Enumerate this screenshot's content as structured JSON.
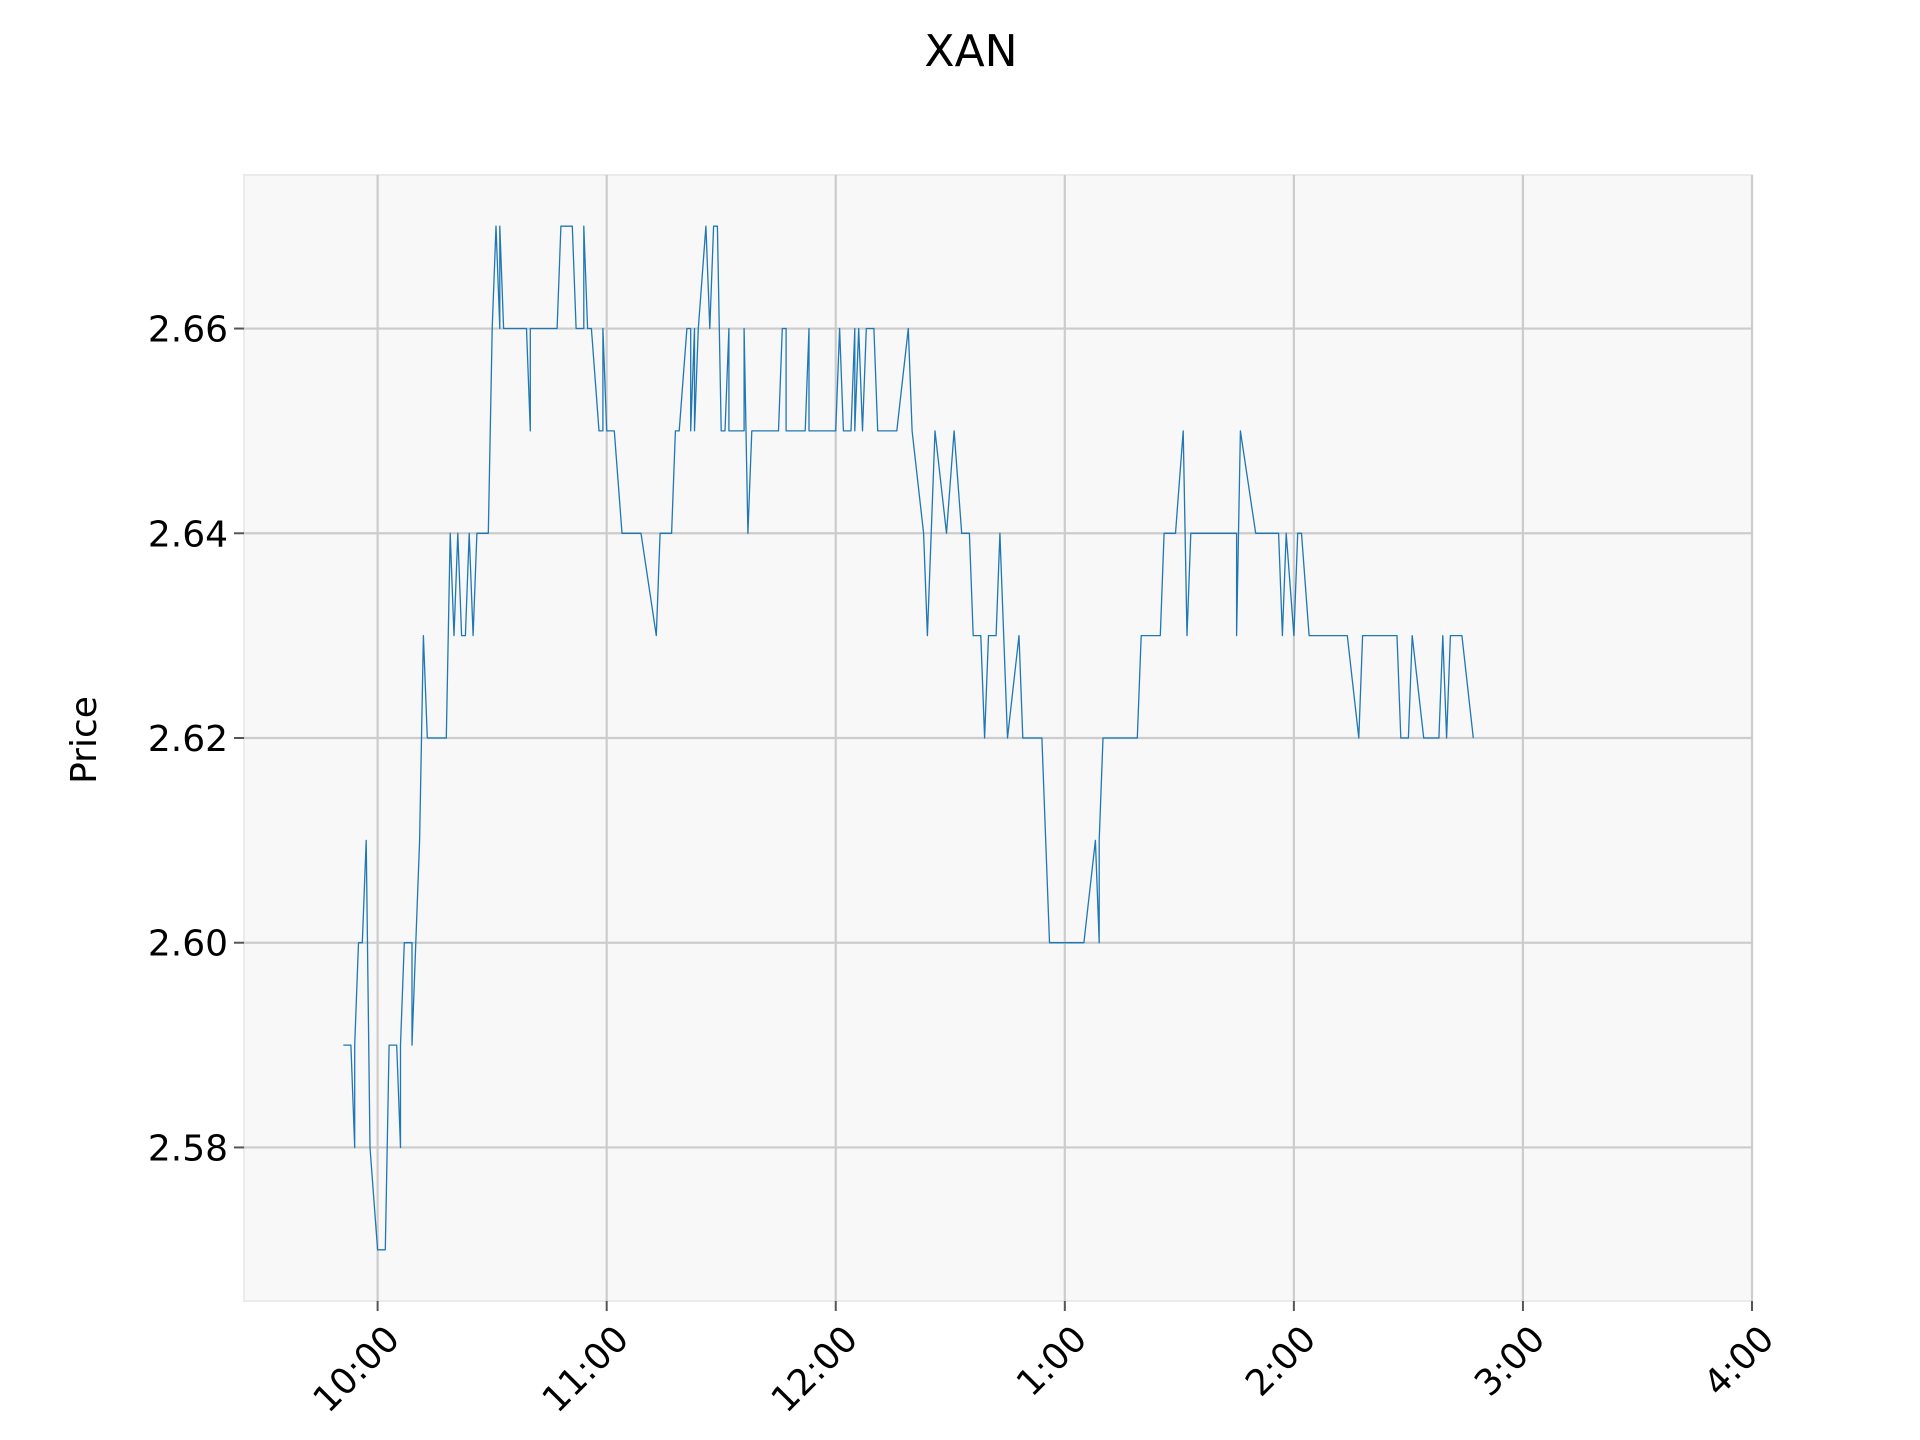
{
  "chart_data": {
    "type": "line",
    "title": "XAN",
    "xlabel": "",
    "ylabel": "Price",
    "grid": true,
    "legend": "none",
    "x_unit": "time of day",
    "xlim": [
      "09:25",
      "16:00"
    ],
    "ylim": [
      2.565,
      2.675
    ],
    "x_ticks": [
      "10:00",
      "11:00",
      "12:00",
      "1:00",
      "2:00",
      "3:00",
      "4:00"
    ],
    "y_ticks": [
      "2.58",
      "2.60",
      "2.62",
      "2.64",
      "2.66"
    ],
    "y_tick_values": [
      2.58,
      2.6,
      2.62,
      2.64,
      2.66
    ],
    "series": [
      {
        "color": "#1f77b4",
        "points": [
          [
            "09:51",
            2.59
          ],
          [
            "09:53",
            2.59
          ],
          [
            "09:54",
            2.58
          ],
          [
            "09:54",
            2.59
          ],
          [
            "09:55",
            2.6
          ],
          [
            "09:56",
            2.6
          ],
          [
            "09:57",
            2.61
          ],
          [
            "09:58",
            2.58
          ],
          [
            "10:00",
            2.57
          ],
          [
            "10:02",
            2.57
          ],
          [
            "10:03",
            2.59
          ],
          [
            "10:05",
            2.59
          ],
          [
            "10:06",
            2.58
          ],
          [
            "10:06",
            2.59
          ],
          [
            "10:07",
            2.6
          ],
          [
            "10:09",
            2.6
          ],
          [
            "10:09",
            2.59
          ],
          [
            "10:10",
            2.6
          ],
          [
            "10:11",
            2.61
          ],
          [
            "10:12",
            2.63
          ],
          [
            "10:13",
            2.62
          ],
          [
            "10:18",
            2.62
          ],
          [
            "10:19",
            2.64
          ],
          [
            "10:20",
            2.63
          ],
          [
            "10:21",
            2.64
          ],
          [
            "10:22",
            2.63
          ],
          [
            "10:23",
            2.63
          ],
          [
            "10:24",
            2.64
          ],
          [
            "10:25",
            2.63
          ],
          [
            "10:26",
            2.64
          ],
          [
            "10:29",
            2.64
          ],
          [
            "10:30",
            2.66
          ],
          [
            "10:31",
            2.67
          ],
          [
            "10:32",
            2.66
          ],
          [
            "10:32",
            2.67
          ],
          [
            "10:33",
            2.66
          ],
          [
            "10:39",
            2.66
          ],
          [
            "10:40",
            2.65
          ],
          [
            "10:40",
            2.66
          ],
          [
            "10:47",
            2.66
          ],
          [
            "10:48",
            2.67
          ],
          [
            "10:51",
            2.67
          ],
          [
            "10:52",
            2.66
          ],
          [
            "10:54",
            2.66
          ],
          [
            "10:54",
            2.67
          ],
          [
            "10:55",
            2.66
          ],
          [
            "10:56",
            2.66
          ],
          [
            "10:58",
            2.65
          ],
          [
            "10:59",
            2.65
          ],
          [
            "10:59",
            2.66
          ],
          [
            "11:00",
            2.65
          ],
          [
            "11:02",
            2.65
          ],
          [
            "11:04",
            2.64
          ],
          [
            "11:09",
            2.64
          ],
          [
            "11:13",
            2.63
          ],
          [
            "11:14",
            2.64
          ],
          [
            "11:17",
            2.64
          ],
          [
            "11:18",
            2.65
          ],
          [
            "11:19",
            2.65
          ],
          [
            "11:21",
            2.66
          ],
          [
            "11:22",
            2.66
          ],
          [
            "11:22",
            2.65
          ],
          [
            "11:23",
            2.66
          ],
          [
            "11:23",
            2.65
          ],
          [
            "11:24",
            2.66
          ],
          [
            "11:26",
            2.67
          ],
          [
            "11:27",
            2.66
          ],
          [
            "11:28",
            2.67
          ],
          [
            "11:29",
            2.67
          ],
          [
            "11:30",
            2.65
          ],
          [
            "11:31",
            2.65
          ],
          [
            "11:32",
            2.66
          ],
          [
            "11:32",
            2.65
          ],
          [
            "11:36",
            2.65
          ],
          [
            "11:36",
            2.66
          ],
          [
            "11:37",
            2.64
          ],
          [
            "11:38",
            2.65
          ],
          [
            "11:45",
            2.65
          ],
          [
            "11:46",
            2.66
          ],
          [
            "11:47",
            2.66
          ],
          [
            "11:47",
            2.65
          ],
          [
            "11:52",
            2.65
          ],
          [
            "11:53",
            2.66
          ],
          [
            "11:53",
            2.65
          ],
          [
            "12:00",
            2.65
          ],
          [
            "12:01",
            2.66
          ],
          [
            "12:02",
            2.65
          ],
          [
            "12:04",
            2.65
          ],
          [
            "12:05",
            2.66
          ],
          [
            "12:05",
            2.65
          ],
          [
            "12:06",
            2.66
          ],
          [
            "12:07",
            2.65
          ],
          [
            "12:08",
            2.66
          ],
          [
            "12:10",
            2.66
          ],
          [
            "12:11",
            2.65
          ],
          [
            "12:16",
            2.65
          ],
          [
            "12:19",
            2.66
          ],
          [
            "12:20",
            2.65
          ],
          [
            "12:23",
            2.64
          ],
          [
            "12:24",
            2.63
          ],
          [
            "12:25",
            2.64
          ],
          [
            "12:26",
            2.65
          ],
          [
            "12:29",
            2.64
          ],
          [
            "12:31",
            2.65
          ],
          [
            "12:33",
            2.64
          ],
          [
            "12:35",
            2.64
          ],
          [
            "12:36",
            2.63
          ],
          [
            "12:38",
            2.63
          ],
          [
            "12:39",
            2.62
          ],
          [
            "12:40",
            2.63
          ],
          [
            "12:42",
            2.63
          ],
          [
            "12:43",
            2.64
          ],
          [
            "12:44",
            2.63
          ],
          [
            "12:45",
            2.62
          ],
          [
            "12:48",
            2.63
          ],
          [
            "12:49",
            2.62
          ],
          [
            "12:54",
            2.62
          ],
          [
            "12:55",
            2.61
          ],
          [
            "12:56",
            2.6
          ],
          [
            "13:05",
            2.6
          ],
          [
            "13:08",
            2.61
          ],
          [
            "13:09",
            2.6
          ],
          [
            "13:09",
            2.61
          ],
          [
            "13:10",
            2.62
          ],
          [
            "13:19",
            2.62
          ],
          [
            "13:20",
            2.63
          ],
          [
            "13:25",
            2.63
          ],
          [
            "13:26",
            2.64
          ],
          [
            "13:29",
            2.64
          ],
          [
            "13:31",
            2.65
          ],
          [
            "13:32",
            2.63
          ],
          [
            "13:33",
            2.64
          ],
          [
            "13:45",
            2.64
          ],
          [
            "13:45",
            2.63
          ],
          [
            "13:46",
            2.65
          ],
          [
            "13:50",
            2.64
          ],
          [
            "13:56",
            2.64
          ],
          [
            "13:57",
            2.63
          ],
          [
            "13:58",
            2.64
          ],
          [
            "14:00",
            2.63
          ],
          [
            "14:01",
            2.64
          ],
          [
            "14:02",
            2.64
          ],
          [
            "14:04",
            2.63
          ],
          [
            "14:14",
            2.63
          ],
          [
            "14:17",
            2.62
          ],
          [
            "14:18",
            2.63
          ],
          [
            "14:27",
            2.63
          ],
          [
            "14:28",
            2.62
          ],
          [
            "14:30",
            2.62
          ],
          [
            "14:31",
            2.63
          ],
          [
            "14:34",
            2.62
          ],
          [
            "14:38",
            2.62
          ],
          [
            "14:39",
            2.63
          ],
          [
            "14:40",
            2.62
          ],
          [
            "14:41",
            2.63
          ],
          [
            "14:44",
            2.63
          ],
          [
            "14:47",
            2.62
          ]
        ]
      }
    ]
  }
}
